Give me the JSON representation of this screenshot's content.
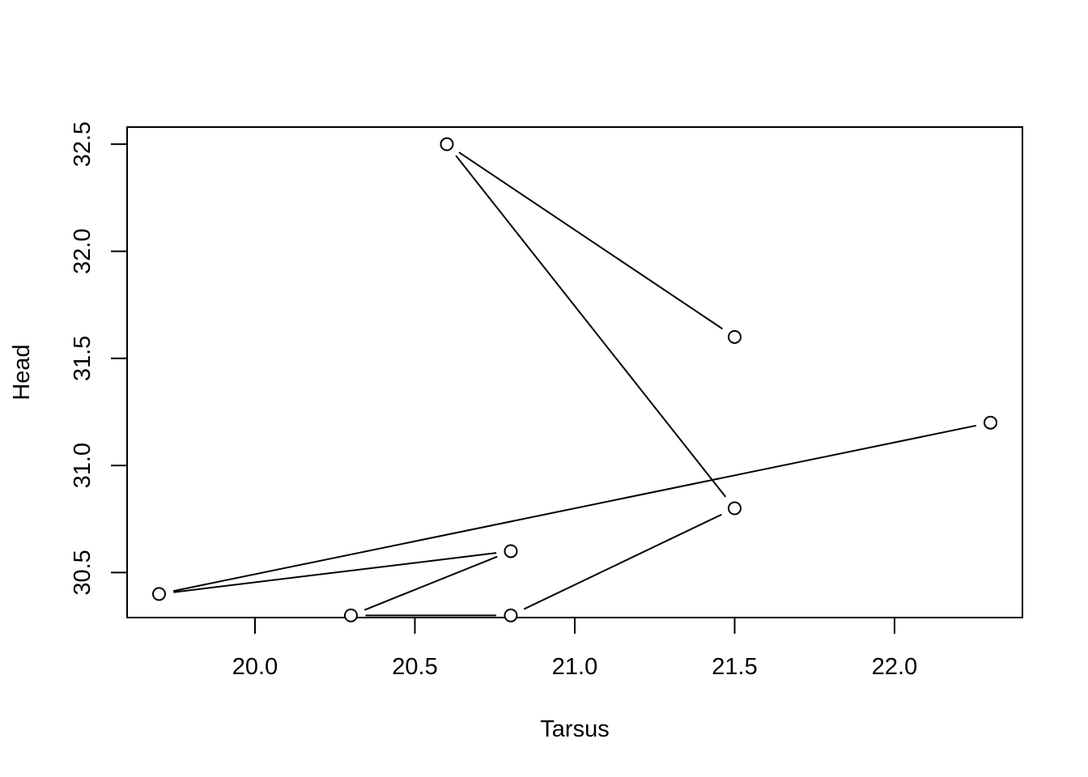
{
  "chart_data": {
    "type": "line",
    "title": "",
    "xlabel": "Tarsus",
    "ylabel": "Head",
    "xlim": [
      19.6,
      22.4
    ],
    "ylim": [
      30.29,
      32.58
    ],
    "xticks": [
      20.0,
      20.5,
      21.0,
      21.5,
      22.0
    ],
    "xtick_labels": [
      "20.0",
      "20.5",
      "21.0",
      "21.5",
      "22.0"
    ],
    "yticks": [
      30.5,
      31.0,
      31.5,
      32.0,
      32.5
    ],
    "ytick_labels": [
      "30.5",
      "31.0",
      "31.5",
      "32.0",
      "32.5"
    ],
    "grid": false,
    "legend": "none",
    "points": [
      {
        "x": 21.5,
        "y": 31.6
      },
      {
        "x": 20.6,
        "y": 32.5
      },
      {
        "x": 21.5,
        "y": 30.8
      },
      {
        "x": 20.8,
        "y": 30.3
      },
      {
        "x": 20.3,
        "y": 30.3
      },
      {
        "x": 20.8,
        "y": 30.6
      },
      {
        "x": 19.7,
        "y": 30.4
      },
      {
        "x": 22.3,
        "y": 31.2
      }
    ]
  }
}
